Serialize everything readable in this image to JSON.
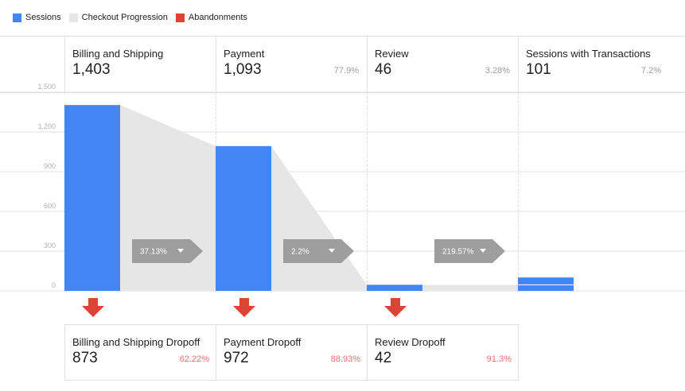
{
  "legend": [
    {
      "label": "Sessions",
      "color": "#4285f4"
    },
    {
      "label": "Checkout Progression",
      "color": "#e6e6e6"
    },
    {
      "label": "Abandonments",
      "color": "#db4437"
    }
  ],
  "steps": [
    {
      "name": "Billing and Shipping",
      "value": "1,403",
      "pct": ""
    },
    {
      "name": "Payment",
      "value": "1,093",
      "pct": "77.9%"
    },
    {
      "name": "Review",
      "value": "46",
      "pct": "3.28%"
    },
    {
      "name": "Sessions with Transactions",
      "value": "101",
      "pct": "7.2%"
    }
  ],
  "dropoffs": [
    {
      "name": "Billing and Shipping Dropoff",
      "value": "873",
      "pct": "62.22%"
    },
    {
      "name": "Payment Dropoff",
      "value": "972",
      "pct": "88.93%"
    },
    {
      "name": "Review Dropoff",
      "value": "42",
      "pct": "91.3%"
    }
  ],
  "conversion_buttons": [
    {
      "label": "37.13%",
      "icon": "caret-down-icon"
    },
    {
      "label": "2.2%",
      "icon": "caret-down-icon"
    },
    {
      "label": "219.57%",
      "icon": "caret-down-icon"
    }
  ],
  "colors": {
    "sessions": "#4285f4",
    "progression": "#e6e6e6",
    "abandon": "#db4437",
    "button": "#9e9e9e"
  },
  "chart_data": {
    "type": "bar",
    "categories": [
      "Billing and Shipping",
      "Payment",
      "Review",
      "Sessions with Transactions"
    ],
    "series": [
      {
        "name": "Sessions",
        "values": [
          1403,
          1093,
          46,
          101
        ]
      }
    ],
    "ylim": [
      0,
      1500
    ],
    "yticks": [
      0,
      300,
      600,
      900,
      1200,
      1500
    ],
    "ytick_labels": [
      "0",
      "300",
      "600",
      "900",
      "1,200",
      "1,500"
    ],
    "grid": true,
    "legend_position": "top-left"
  }
}
